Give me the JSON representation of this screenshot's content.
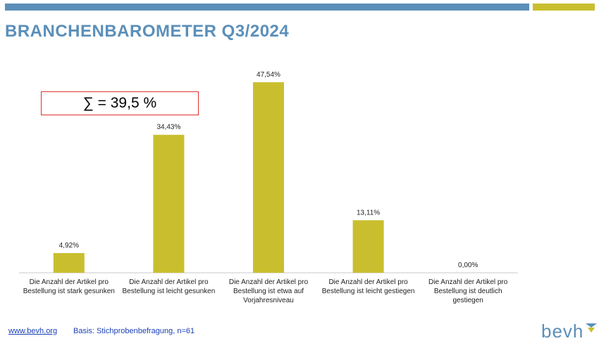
{
  "header": {
    "title": "BRANCHENBAROMETER Q3/2024"
  },
  "annotation": {
    "sum_label": "∑ = 39,5 %"
  },
  "colors": {
    "accent_blue": "#5b8fb9",
    "bar_olive": "#c9bf2e",
    "annotation_border": "#e0312b"
  },
  "chart_data": {
    "type": "bar",
    "title": "",
    "xlabel": "",
    "ylabel": "",
    "ylim": [
      0,
      50
    ],
    "grid": false,
    "legend": "none",
    "categories": [
      [
        "Die Anzahl der Artikel pro",
        "Bestellung ist stark gesunken"
      ],
      [
        "Die Anzahl der Artikel pro",
        "Bestellung ist leicht gesunken"
      ],
      [
        "Die Anzahl der Artikel pro",
        "Bestellung ist etwa auf",
        "Vorjahresniveau"
      ],
      [
        "Die Anzahl der Artikel pro",
        "Bestellung ist leicht gestiegen"
      ],
      [
        "Die Anzahl der Artikel pro",
        "Bestellung ist deutlich",
        "gestiegen"
      ]
    ],
    "values": [
      4.92,
      34.43,
      47.54,
      13.11,
      0.0
    ],
    "data_labels": [
      "4,92%",
      "34,43%",
      "47,54%",
      "13,11%",
      "0,00%"
    ]
  },
  "footer": {
    "link_text": "www.bevh.org",
    "basis_text": "Basis: Stichprobenbefragung, n=61"
  },
  "logo": {
    "text": "bevh",
    "mark_icon": "bevh-chevron-icon"
  }
}
